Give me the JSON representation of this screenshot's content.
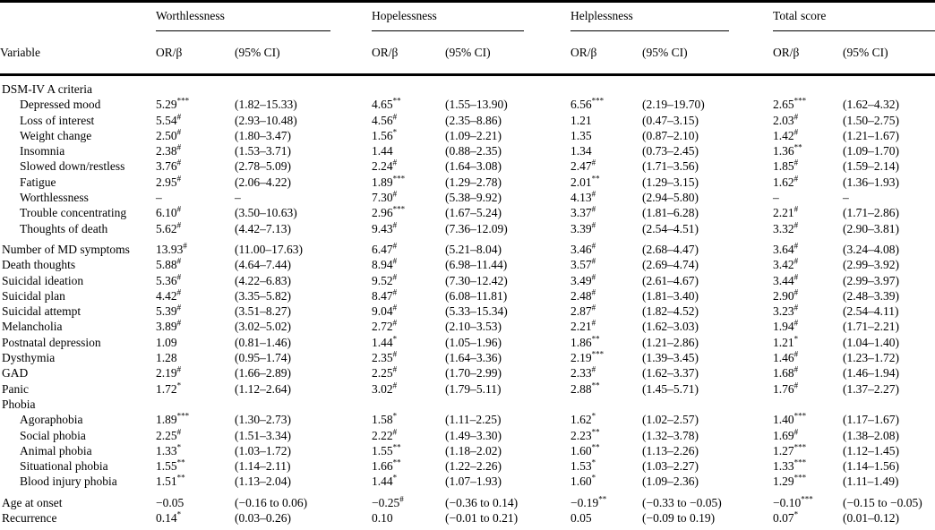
{
  "table": {
    "variable_header": "Variable",
    "or_header": "OR/β",
    "ci_header": "(95% CI)",
    "groups": [
      {
        "label": "Worthlessness"
      },
      {
        "label": "Hopelessness"
      },
      {
        "label": "Helplessness"
      },
      {
        "label": "Total score"
      }
    ],
    "rows": [
      {
        "label": "DSM-IV A criteria",
        "section": true,
        "cells": [
          "",
          "",
          "",
          "",
          "",
          "",
          "",
          ""
        ]
      },
      {
        "label": "Depressed mood",
        "indent": true,
        "cells": [
          "5.29***",
          "(1.82–15.33)",
          "4.65**",
          "(1.55–13.90)",
          "6.56***",
          "(2.19–19.70)",
          "2.65***",
          "(1.62–4.32)"
        ]
      },
      {
        "label": "Loss of interest",
        "indent": true,
        "cells": [
          "5.54#",
          "(2.93–10.48)",
          "4.56#",
          "(2.35–8.86)",
          "1.21",
          "(0.47–3.15)",
          "2.03#",
          "(1.50–2.75)"
        ]
      },
      {
        "label": "Weight change",
        "indent": true,
        "cells": [
          "2.50#",
          "(1.80–3.47)",
          "1.56*",
          "(1.09–2.21)",
          "1.35",
          "(0.87–2.10)",
          "1.42#",
          "(1.21–1.67)"
        ]
      },
      {
        "label": "Insomnia",
        "indent": true,
        "cells": [
          "2.38#",
          "(1.53–3.71)",
          "1.44",
          "(0.88–2.35)",
          "1.34",
          "(0.73–2.45)",
          "1.36**",
          "(1.09–1.70)"
        ]
      },
      {
        "label": "Slowed down/restless",
        "indent": true,
        "cells": [
          "3.76#",
          "(2.78–5.09)",
          "2.24#",
          "(1.64–3.08)",
          "2.47#",
          "(1.71–3.56)",
          "1.85#",
          "(1.59–2.14)"
        ]
      },
      {
        "label": "Fatigue",
        "indent": true,
        "cells": [
          "2.95#",
          "(2.06–4.22)",
          "1.89***",
          "(1.29–2.78)",
          "2.01**",
          "(1.29–3.15)",
          "1.62#",
          "(1.36–1.93)"
        ]
      },
      {
        "label": "Worthlessness",
        "indent": true,
        "cells": [
          "–",
          "–",
          "7.30#",
          "(5.38–9.92)",
          "4.13#",
          "(2.94–5.80)",
          "–",
          "–"
        ]
      },
      {
        "label": "Trouble concentrating",
        "indent": true,
        "cells": [
          "6.10#",
          "(3.50–10.63)",
          "2.96***",
          "(1.67–5.24)",
          "3.37#",
          "(1.81–6.28)",
          "2.21#",
          "(1.71–2.86)"
        ]
      },
      {
        "label": "Thoughts of death",
        "indent": true,
        "cells": [
          "5.62#",
          "(4.42–7.13)",
          "9.43#",
          "(7.36–12.09)",
          "3.39#",
          "(2.54–4.51)",
          "3.32#",
          "(2.90–3.81)"
        ]
      },
      {
        "label": "Number of MD symptoms",
        "gap": true,
        "cells": [
          "13.93#",
          "(11.00–17.63)",
          "6.47#",
          "(5.21–8.04)",
          "3.46#",
          "(2.68–4.47)",
          "3.64#",
          "(3.24–4.08)"
        ]
      },
      {
        "label": "Death thoughts",
        "cells": [
          "5.88#",
          "(4.64–7.44)",
          "8.94#",
          "(6.98–11.44)",
          "3.57#",
          "(2.69–4.74)",
          "3.42#",
          "(2.99–3.92)"
        ]
      },
      {
        "label": "Suicidal ideation",
        "cells": [
          "5.36#",
          "(4.22–6.83)",
          "9.52#",
          "(7.30–12.42)",
          "3.49#",
          "(2.61–4.67)",
          "3.44#",
          "(2.99–3.97)"
        ]
      },
      {
        "label": "Suicidal plan",
        "cells": [
          "4.42#",
          "(3.35–5.82)",
          "8.47#",
          "(6.08–11.81)",
          "2.48#",
          "(1.81–3.40)",
          "2.90#",
          "(2.48–3.39)"
        ]
      },
      {
        "label": "Suicidal attempt",
        "cells": [
          "5.39#",
          "(3.51–8.27)",
          "9.04#",
          "(5.33–15.34)",
          "2.87#",
          "(1.82–4.52)",
          "3.23#",
          "(2.54–4.11)"
        ]
      },
      {
        "label": "Melancholia",
        "cells": [
          "3.89#",
          "(3.02–5.02)",
          "2.72#",
          "(2.10–3.53)",
          "2.21#",
          "(1.62–3.03)",
          "1.94#",
          "(1.71–2.21)"
        ]
      },
      {
        "label": "Postnatal depression",
        "cells": [
          "1.09",
          "(0.81–1.46)",
          "1.44*",
          "(1.05–1.96)",
          "1.86**",
          "(1.21–2.86)",
          "1.21*",
          "(1.04–1.40)"
        ]
      },
      {
        "label": "Dysthymia",
        "cells": [
          "1.28",
          "(0.95–1.74)",
          "2.35#",
          "(1.64–3.36)",
          "2.19***",
          "(1.39–3.45)",
          "1.46#",
          "(1.23–1.72)"
        ]
      },
      {
        "label": "GAD",
        "cells": [
          "2.19#",
          "(1.66–2.89)",
          "2.25#",
          "(1.70–2.99)",
          "2.33#",
          "(1.62–3.37)",
          "1.68#",
          "(1.46–1.94)"
        ]
      },
      {
        "label": "Panic",
        "cells": [
          "1.72*",
          "(1.12–2.64)",
          "3.02#",
          "(1.79–5.11)",
          "2.88**",
          "(1.45–5.71)",
          "1.76#",
          "(1.37–2.27)"
        ]
      },
      {
        "label": "Phobia",
        "section": true,
        "cells": [
          "",
          "",
          "",
          "",
          "",
          "",
          "",
          ""
        ]
      },
      {
        "label": "Agoraphobia",
        "indent": true,
        "cells": [
          "1.89***",
          "(1.30–2.73)",
          "1.58*",
          "(1.11–2.25)",
          "1.62*",
          "(1.02–2.57)",
          "1.40***",
          "(1.17–1.67)"
        ]
      },
      {
        "label": "Social phobia",
        "indent": true,
        "cells": [
          "2.25#",
          "(1.51–3.34)",
          "2.22#",
          "(1.49–3.30)",
          "2.23**",
          "(1.32–3.78)",
          "1.69#",
          "(1.38–2.08)"
        ]
      },
      {
        "label": "Animal phobia",
        "indent": true,
        "cells": [
          "1.33*",
          "(1.03–1.72)",
          "1.55**",
          "(1.18–2.02)",
          "1.60**",
          "(1.13–2.26)",
          "1.27***",
          "(1.12–1.45)"
        ]
      },
      {
        "label": "Situational phobia",
        "indent": true,
        "cells": [
          "1.55**",
          "(1.14–2.11)",
          "1.66**",
          "(1.22–2.26)",
          "1.53*",
          "(1.03–2.27)",
          "1.33***",
          "(1.14–1.56)"
        ]
      },
      {
        "label": "Blood injury phobia",
        "indent": true,
        "cells": [
          "1.51**",
          "(1.13–2.04)",
          "1.44*",
          "(1.07–1.93)",
          "1.60*",
          "(1.09–2.36)",
          "1.29***",
          "(1.11–1.49)"
        ]
      },
      {
        "label": "Age at onset",
        "gap": true,
        "cells": [
          "−0.05",
          "(−0.16 to 0.06)",
          "−0.25#",
          "(−0.36 to 0.14)",
          "−0.19**",
          "(−0.33 to −0.05)",
          "−0.10***",
          "(−0.15 to −0.05)"
        ]
      },
      {
        "label": "Recurrence",
        "cells": [
          "0.14*",
          "(0.03–0.26)",
          "0.10",
          "(−0.01 to 0.21)",
          "0.05",
          "(−0.09 to 0.19)",
          "0.07*",
          "(0.01–0.12)"
        ]
      }
    ]
  }
}
